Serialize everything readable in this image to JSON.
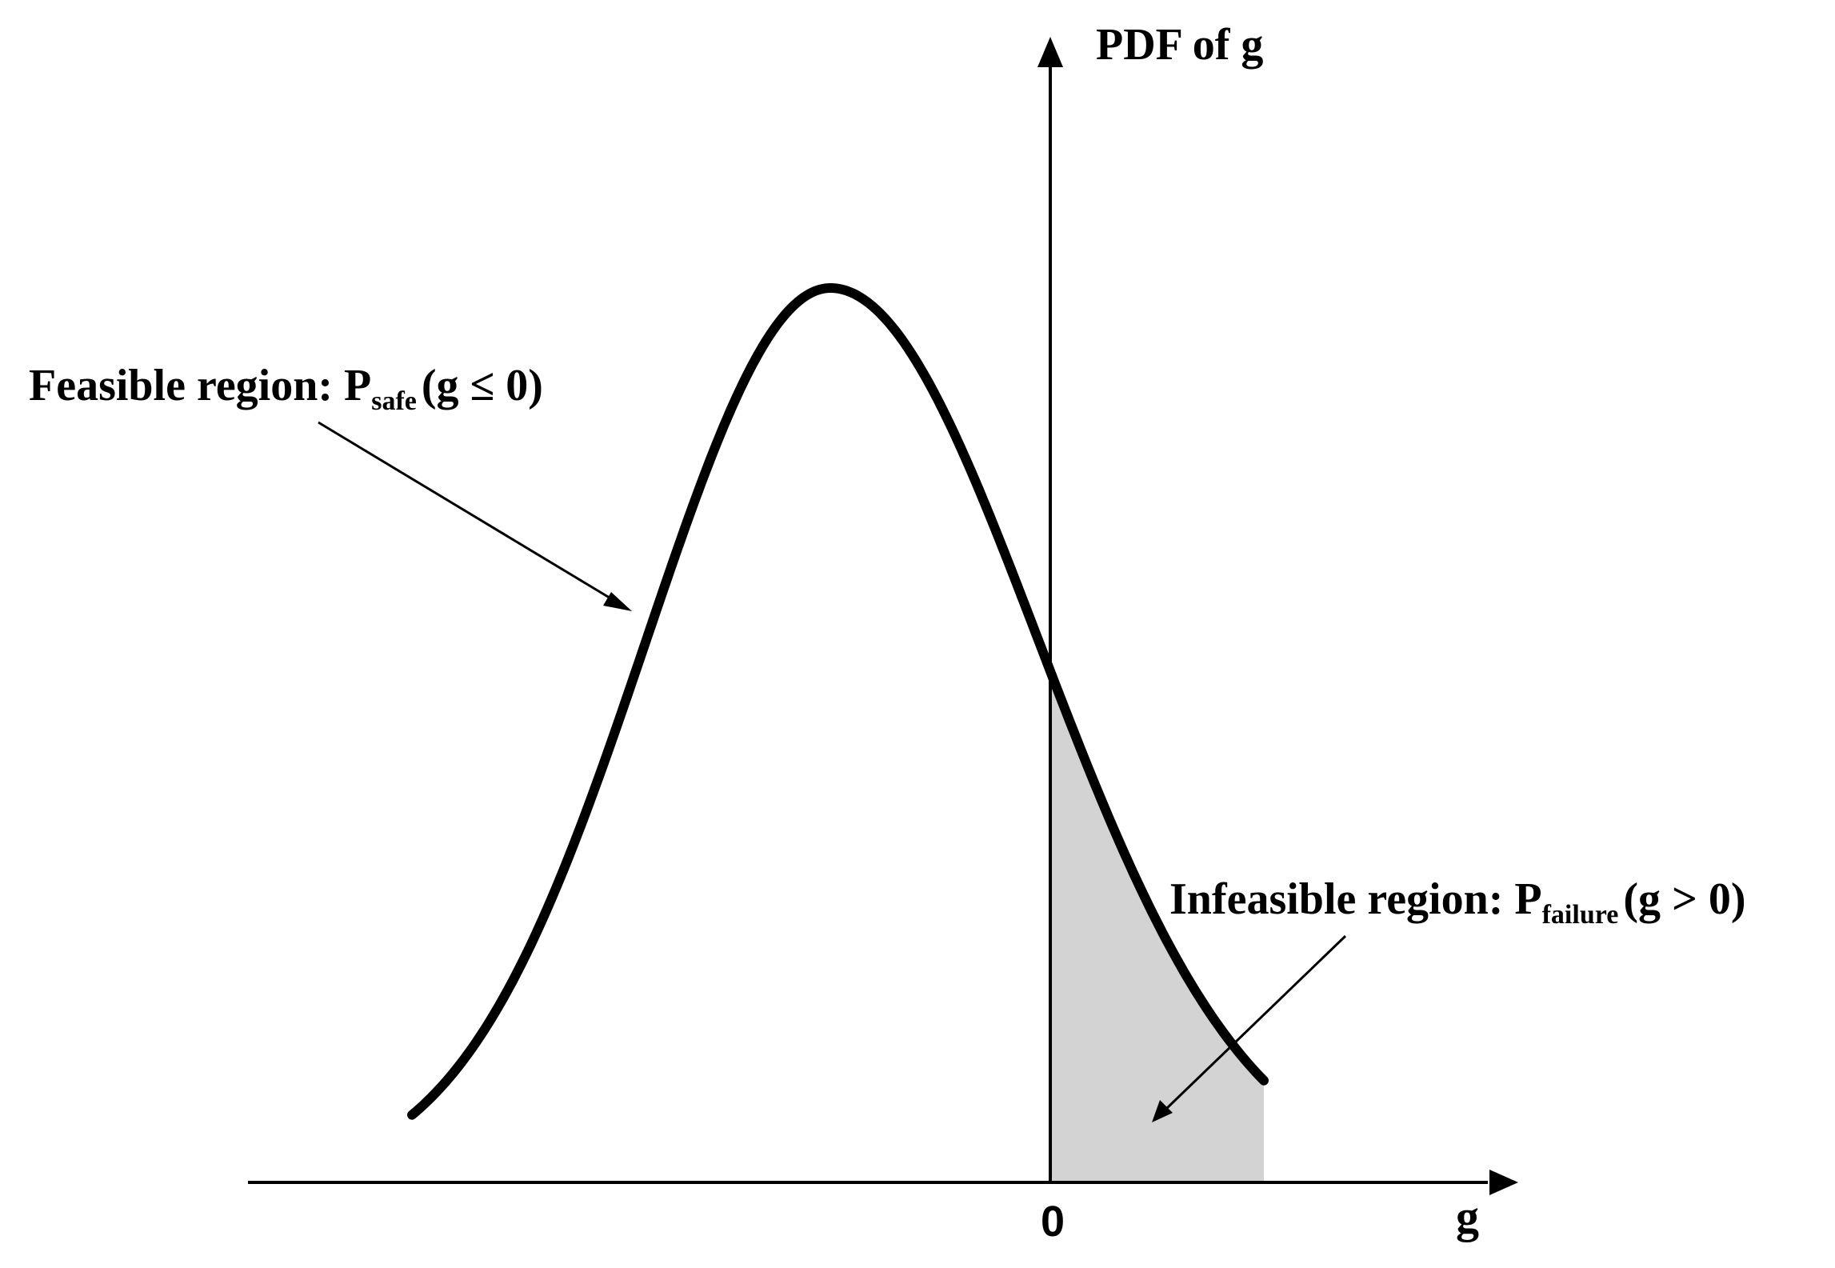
{
  "diagram": {
    "y_axis_label": "PDF of g",
    "x_axis_label": "g",
    "origin_tick": "0",
    "feasible_label": {
      "prefix": "Feasible region: P",
      "subscript": "safe",
      "suffix": "(g ≤ 0)"
    },
    "infeasible_label": {
      "prefix": "Infeasible region: P",
      "subscript": "failure",
      "suffix": "(g > 0)"
    },
    "colors": {
      "curve": "#000000",
      "shaded_tail": "#d3d3d3",
      "axes": "#000000"
    }
  }
}
